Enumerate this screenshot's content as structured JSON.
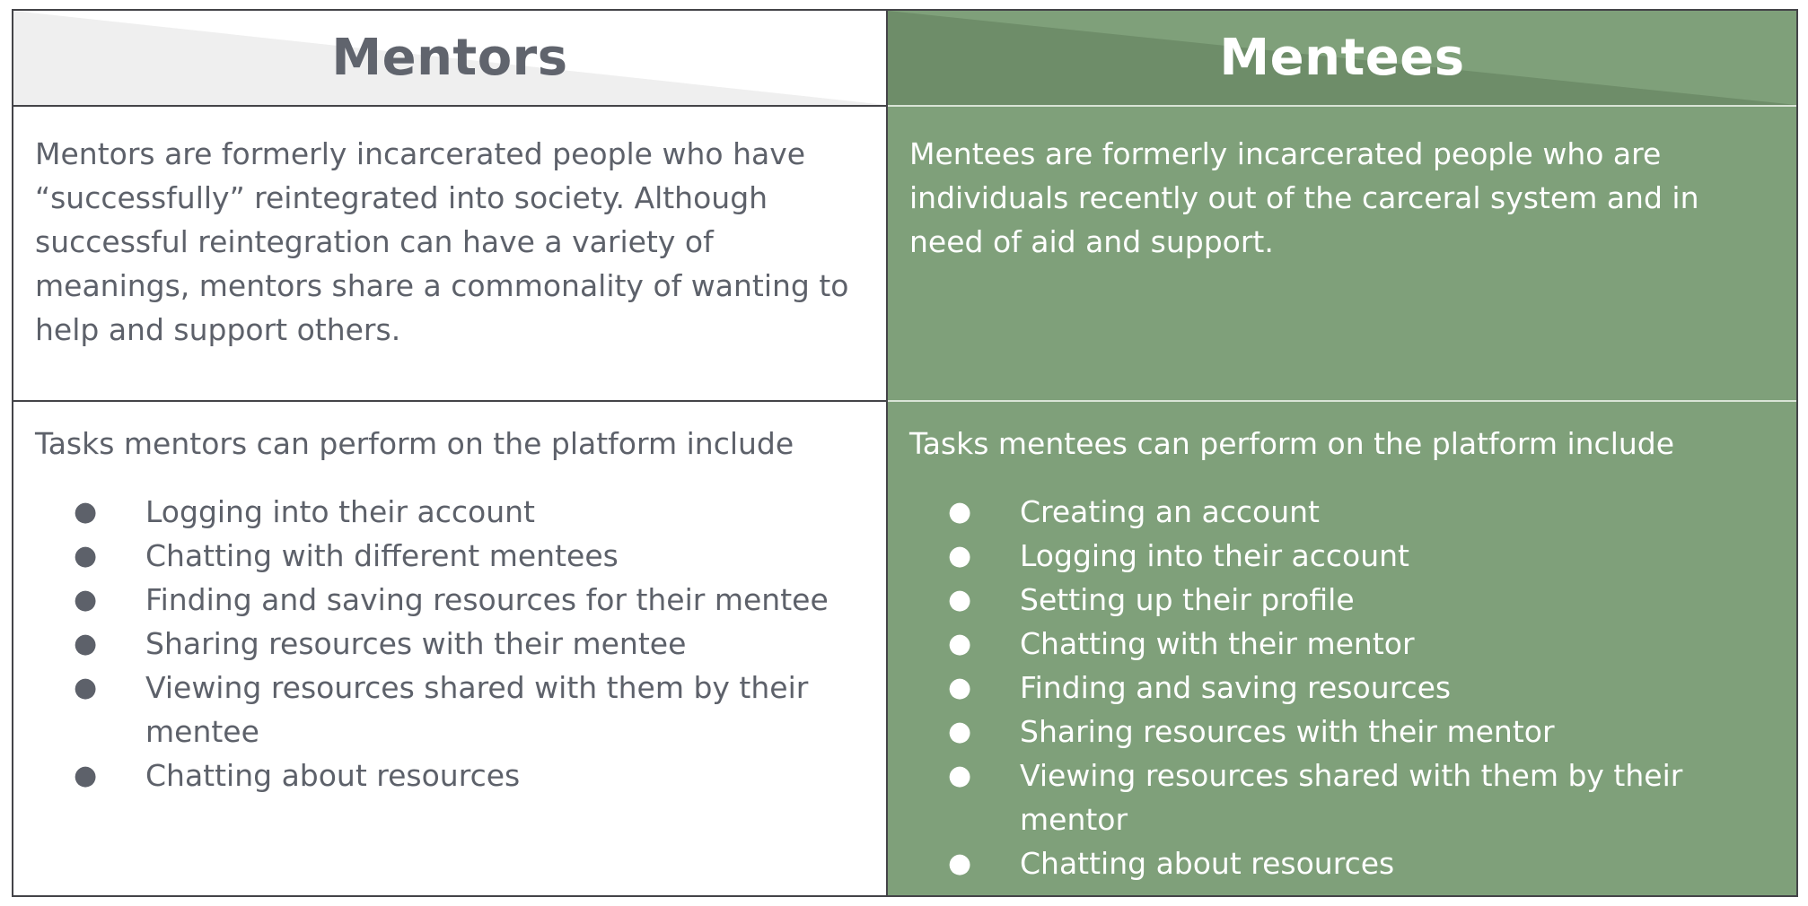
{
  "mentors": {
    "title": "Mentors",
    "description": "Mentors are formerly incarcerated people who have “successfully” reintegrated into society. Although successful reintegration can have a variety of meanings, mentors share a commonality of wanting to help and support others.",
    "tasks_intro": "Tasks mentors can perform on the platform include",
    "tasks": [
      "Logging into their account",
      "Chatting with different mentees",
      "Finding and saving resources for their mentee",
      "Sharing resources with their mentee",
      "Viewing resources shared with them by their mentee",
      "Chatting about resources"
    ]
  },
  "mentees": {
    "title": "Mentees",
    "description": "Mentees are formerly incarcerated people who are individuals recently out of the carceral system and in need of aid and support.",
    "tasks_intro": "Tasks mentees can perform on the platform include",
    "tasks": [
      "Creating an account",
      "Logging into their account",
      "Setting up their profile",
      "Chatting with their mentor",
      "Finding and saving resources",
      "Sharing resources with their mentor",
      "Viewing resources shared with them by their mentor",
      "Chatting about resources"
    ]
  },
  "bullet_glyph": "●",
  "colors": {
    "mentee_bg": "#7fa07a",
    "mentee_header_dark": "#6e8d69",
    "mentor_text": "#5d616a",
    "mentor_header_shade": "#efefef",
    "border": "#444448"
  }
}
